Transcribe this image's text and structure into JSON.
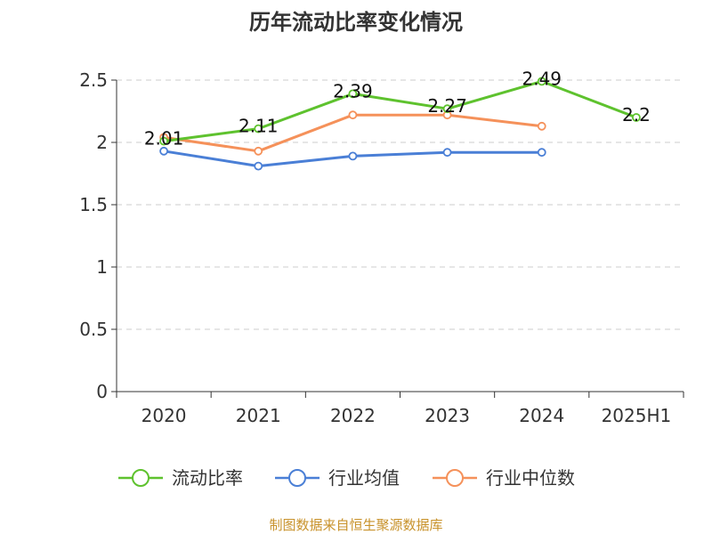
{
  "chart_data": {
    "type": "line",
    "title": "历年流动比率变化情况",
    "xlabel": "",
    "ylabel": "",
    "categories": [
      "2020",
      "2021",
      "2022",
      "2023",
      "2024",
      "2025H1"
    ],
    "ylim": [
      0,
      2.5
    ],
    "yticks": [
      "0",
      "0.5",
      "1",
      "1.5",
      "2",
      "2.5"
    ],
    "grid": true,
    "legend_position": "bottom",
    "series": [
      {
        "name": "流动比率",
        "color": "#5ec22e",
        "values": [
          2.01,
          2.11,
          2.39,
          2.27,
          2.49,
          2.2
        ],
        "labels": [
          "2.01",
          "2.11",
          "2.39",
          "2.27",
          "2.49",
          "2.2"
        ]
      },
      {
        "name": "行业均值",
        "color": "#4a7fd6",
        "values": [
          1.93,
          1.81,
          1.89,
          1.92,
          1.92,
          null
        ]
      },
      {
        "name": "行业中位数",
        "color": "#f5915a",
        "values": [
          2.04,
          1.93,
          2.22,
          2.22,
          2.13,
          null
        ]
      }
    ]
  },
  "footer": {
    "source": "制图数据来自恒生聚源数据库"
  }
}
